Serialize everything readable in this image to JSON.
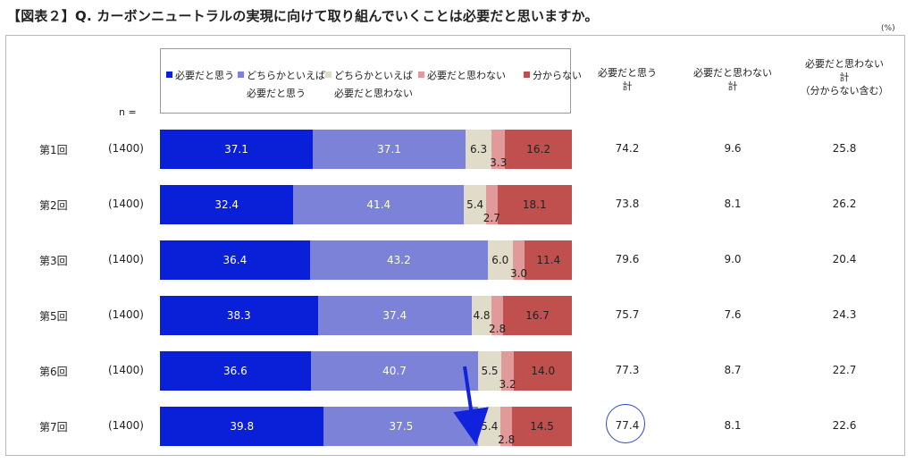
{
  "title": "【図表２】Q. カーボンニュートラルの実現に向けて取り組んでいくことは必要だと思いますか。",
  "unit": "(%)",
  "n_label": "n =",
  "legend": [
    {
      "lines": [
        "必要だと思う"
      ]
    },
    {
      "lines": [
        "どちらかといえば",
        "必要だと思う"
      ]
    },
    {
      "lines": [
        "どちらかといえば",
        "必要だと思わない"
      ]
    },
    {
      "lines": [
        "必要だと思わない"
      ]
    },
    {
      "lines": [
        "分からない"
      ]
    }
  ],
  "columns": [
    [
      "必要だと思う",
      "計"
    ],
    [
      "必要だと思わない",
      "計"
    ],
    [
      "必要だと思わない",
      "計",
      "（分からない含む）"
    ]
  ],
  "colors": [
    "#0a1fd8",
    "#7b82d8",
    "#e1dcc9",
    "#e09a9a",
    "#c0504d"
  ],
  "chart_data": {
    "type": "bar",
    "orientation": "horizontal-stacked-100",
    "categories": [
      "第1回",
      "第2回",
      "第3回",
      "第5回",
      "第6回",
      "第7回"
    ],
    "n": [
      "(1400)",
      "(1400)",
      "(1400)",
      "(1400)",
      "(1400)",
      "(1400)"
    ],
    "series": [
      {
        "name": "必要だと思う",
        "values": [
          37.1,
          32.4,
          36.4,
          38.3,
          36.6,
          39.8
        ]
      },
      {
        "name": "どちらかといえば必要だと思う",
        "values": [
          37.1,
          41.4,
          43.2,
          37.4,
          40.7,
          37.5
        ]
      },
      {
        "name": "どちらかといえば必要だと思わない",
        "values": [
          6.3,
          5.4,
          6.0,
          4.8,
          5.5,
          5.4
        ]
      },
      {
        "name": "必要だと思わない",
        "values": [
          3.3,
          2.7,
          3.0,
          2.8,
          3.2,
          2.8
        ]
      },
      {
        "name": "分からない",
        "values": [
          16.2,
          18.1,
          11.4,
          16.7,
          14.0,
          14.5
        ]
      }
    ],
    "totals": [
      {
        "name": "必要だと思う計",
        "values": [
          74.2,
          73.8,
          79.6,
          75.7,
          77.3,
          77.4
        ]
      },
      {
        "name": "必要だと思わない計",
        "values": [
          9.6,
          8.1,
          9.0,
          7.6,
          8.7,
          8.1
        ]
      },
      {
        "name": "必要だと思わない計（分からない含む）",
        "values": [
          25.8,
          26.2,
          20.4,
          24.3,
          22.7,
          22.6
        ]
      }
    ],
    "xlim": [
      0,
      100
    ],
    "legend_position": "top"
  }
}
